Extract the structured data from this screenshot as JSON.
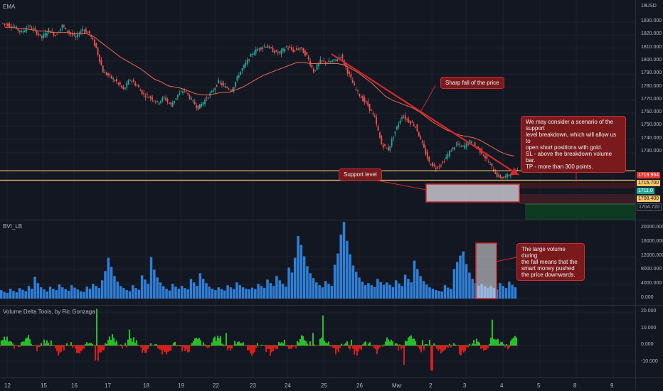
{
  "panes": {
    "main_title": "EMA",
    "currency": "USD",
    "volume_title": "BVI_LB",
    "delta_title": "Volume Delta Tools, by Ric Gonzaga"
  },
  "price_axis": {
    "top_tick": "18",
    "ticks": [
      "1830.000",
      "1820.000",
      "1810.000",
      "1800.000",
      "1790.000",
      "1780.000",
      "1770.000",
      "1760.000",
      "1750.000",
      "1740.000",
      "1730.000"
    ],
    "bottom_tick": "1704.720"
  },
  "price_labels": {
    "red": "1719.964",
    "yellow_upper": "1715.700",
    "blue": "1711.0",
    "yellow_lower": "1708.400"
  },
  "volume_axis": [
    "20000.000",
    "16000.000",
    "12000.000",
    "8000.000",
    "4000.000",
    "0.000"
  ],
  "delta_axis": [
    "20.000",
    "10.000",
    "0.000",
    "-10.000"
  ],
  "date_axis": [
    "12",
    "15",
    "16",
    "17",
    "18",
    "19",
    "22",
    "23",
    "24",
    "25",
    "26",
    "Mar",
    "2",
    "3",
    "4",
    "5",
    "8",
    "9"
  ],
  "callouts": {
    "sharp_fall": "Sharp fall of the price",
    "support": "Support level",
    "scenario": [
      "We may consider a scenario of the support",
      "level breakdown, which will allow us to",
      "open short positions with gold.",
      "SL - above the breakdown volume bar.",
      "TP - more than 300 points."
    ],
    "volume": [
      "The large volume during",
      "the fall means that the",
      "smart money pushed",
      "the price downwards."
    ]
  },
  "colors": {
    "background": "#131722",
    "up": "#26a69a",
    "down": "#ef5350",
    "ema": "#e86a4a",
    "support": "#f6c56b",
    "volume_bar": "#2f7fd6",
    "delta_pos": "#22c02b",
    "delta_neg": "#d81b1b",
    "callout_bg": "#7b1a1d",
    "arrow": "#d4282e",
    "zone_red": "#3a1a20",
    "zone_green": "#0d3a20"
  },
  "chart_data": [
    {
      "type": "candlestick",
      "title": "EMA",
      "ylabel": "USD",
      "ylim": [
        1701,
        1840
      ],
      "x": [
        "12",
        "15",
        "16",
        "17",
        "18",
        "19",
        "22",
        "23",
        "24",
        "25",
        "26",
        "Mar",
        "2",
        "3",
        "4"
      ],
      "close_path": [
        1828,
        1826,
        1822,
        1827,
        1823,
        1818,
        1824,
        1820,
        1827,
        1822,
        1818,
        1825,
        1821,
        1810,
        1792,
        1788,
        1784,
        1778,
        1786,
        1781,
        1774,
        1772,
        1768,
        1772,
        1766,
        1774,
        1778,
        1770,
        1764,
        1770,
        1776,
        1784,
        1780,
        1778,
        1790,
        1798,
        1806,
        1810,
        1812,
        1808,
        1806,
        1811,
        1808,
        1810,
        1804,
        1792,
        1800,
        1799,
        1800,
        1804,
        1792,
        1780,
        1772,
        1766,
        1756,
        1736,
        1732,
        1746,
        1758,
        1754,
        1750,
        1736,
        1722,
        1718,
        1722,
        1730,
        1736,
        1734,
        1738,
        1734,
        1728,
        1720,
        1712,
        1710,
        1714,
        1716
      ],
      "ema_path": [
        1826,
        1826,
        1825,
        1825,
        1824,
        1823,
        1823,
        1822,
        1822,
        1822,
        1821,
        1821,
        1821,
        1819,
        1815,
        1811,
        1807,
        1803,
        1800,
        1797,
        1794,
        1790,
        1786,
        1784,
        1781,
        1780,
        1779,
        1777,
        1775,
        1774,
        1774,
        1775,
        1776,
        1776,
        1778,
        1780,
        1783,
        1786,
        1789,
        1791,
        1793,
        1795,
        1797,
        1799,
        1799,
        1798,
        1798,
        1798,
        1798,
        1798,
        1797,
        1794,
        1791,
        1787,
        1783,
        1778,
        1773,
        1770,
        1768,
        1766,
        1764,
        1761,
        1757,
        1753,
        1750,
        1747,
        1745,
        1743,
        1742,
        1741,
        1739,
        1736,
        1733,
        1730,
        1728,
        1727
      ],
      "support_levels": [
        1715.7,
        1708.4
      ]
    },
    {
      "type": "bar",
      "title": "BVI_LB",
      "ylim": [
        0,
        22000
      ],
      "values": [
        2400,
        1900,
        1600,
        2800,
        2200,
        1800,
        3000,
        2500,
        2100,
        3600,
        2800,
        6200,
        4400,
        3200,
        2600,
        2000,
        3400,
        2800,
        2400,
        4000,
        3200,
        2700,
        2200,
        3800,
        3100,
        2600,
        2100,
        1900,
        3400,
        2800,
        4200,
        3600,
        3000,
        5200,
        7800,
        11600,
        9000,
        6400,
        4800,
        3600,
        3000,
        2400,
        2100,
        3800,
        3000,
        2500,
        6600,
        5400,
        4200,
        11800,
        8200,
        6000,
        4600,
        3500,
        2800,
        2300,
        4200,
        3400,
        2800,
        3600,
        3000,
        2600,
        5600,
        4600,
        3600,
        7200,
        5600,
        4400,
        3400,
        2800,
        2400,
        3200,
        2700,
        2300,
        3800,
        3200,
        2700,
        4600,
        3800,
        3200,
        2800,
        2600,
        3100,
        2700,
        4200,
        3600,
        3000,
        5400,
        4400,
        3600,
        6400,
        5200,
        4200,
        3400,
        8800,
        7400,
        11600,
        17800,
        15200,
        12000,
        9200,
        7200,
        5800,
        4600,
        3800,
        3200,
        5000,
        4200,
        3600,
        9600,
        12800,
        18200,
        21800,
        16400,
        12600,
        9400,
        7600,
        6000,
        4800,
        3800,
        4400,
        3800,
        3300,
        5600,
        4700,
        3900,
        4600,
        3900,
        3300,
        5200,
        4300,
        3600,
        6800,
        5600,
        4600,
        10800,
        8400,
        6400,
        5000,
        4000,
        3200,
        2800,
        2400,
        2200,
        2000,
        3800,
        3100,
        2700,
        8400,
        10400,
        12200,
        13400,
        9800,
        7400,
        5600,
        4400,
        3600,
        4200,
        3600,
        3100,
        3600,
        3000,
        2600,
        4400,
        3600,
        3000,
        4800,
        3900,
        3200
      ]
    },
    {
      "type": "area",
      "title": "Volume Delta Tools, by Ric Gonzaga",
      "ylim": [
        -16,
        25
      ],
      "series_shape": "oscillating green/red delta around 0"
    }
  ]
}
